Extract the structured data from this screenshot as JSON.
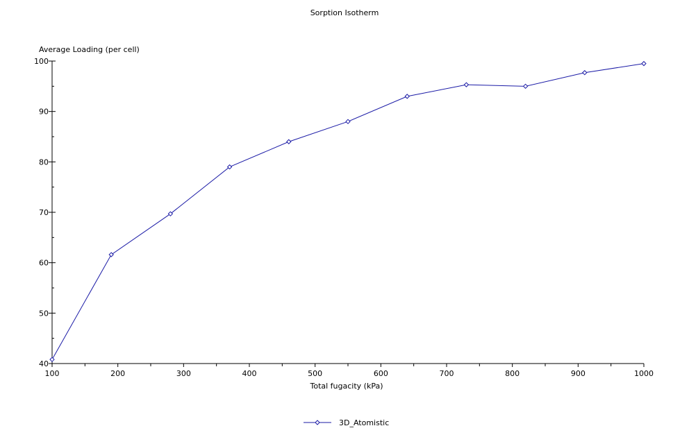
{
  "chart_data": {
    "type": "line",
    "title": "Sorption Isotherm",
    "xlabel": "Total fugacity (kPa)",
    "ylabel": "Average Loading (per cell)",
    "xlim": [
      100,
      1000
    ],
    "ylim": [
      40,
      100
    ],
    "x_ticks": [
      100,
      200,
      300,
      400,
      500,
      600,
      700,
      800,
      900,
      1000
    ],
    "y_ticks": [
      40,
      50,
      60,
      70,
      80,
      90,
      100
    ],
    "grid": false,
    "legend_position": "bottom-center",
    "series": [
      {
        "name": "3D_Atomistic",
        "color": "#1a1aa6",
        "marker": "diamond",
        "x": [
          100,
          190,
          280,
          370,
          460,
          550,
          640,
          730,
          820,
          910,
          1000
        ],
        "y": [
          40.8,
          61.6,
          69.7,
          79.0,
          84.0,
          88.0,
          93.0,
          95.3,
          95.0,
          97.7,
          99.5
        ]
      }
    ]
  }
}
